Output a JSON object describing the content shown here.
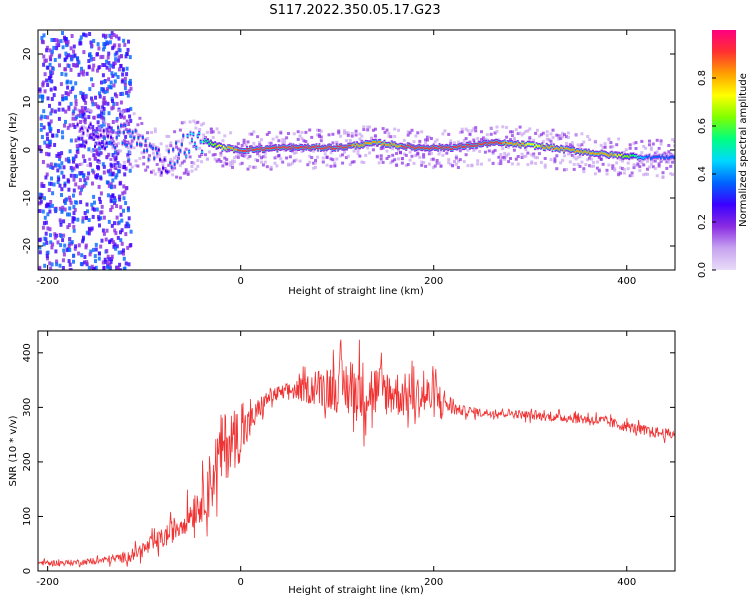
{
  "page": {
    "title": "S117.2022.350.05.17.G23"
  },
  "colors": {
    "background": "#ffffff",
    "axis": "#000000",
    "snr_line": "#f03232",
    "colormap": [
      "#e8dcf8",
      "#c7a3f0",
      "#8a2be2",
      "#3a00ff",
      "#0064ff",
      "#00d8ff",
      "#00ff80",
      "#80ff00",
      "#ffff00",
      "#ffa000",
      "#ff3030",
      "#ff0080"
    ]
  },
  "chart_data": [
    {
      "type": "heatmap",
      "title": "",
      "xlabel": "Height of straight line (km)",
      "ylabel": "Frequency (Hz)",
      "xlim": [
        -210,
        450
      ],
      "ylim": [
        -25,
        25
      ],
      "xticks": [
        -200,
        0,
        200,
        400
      ],
      "yticks": [
        20,
        10,
        0,
        -10,
        -20
      ],
      "colorbar": {
        "label": "Normalized spectral amplitude",
        "range": [
          0,
          1
        ],
        "ticks": [
          0.0,
          0.2,
          0.4,
          0.6,
          0.8
        ]
      },
      "ridge": {
        "description_points_x": [
          -160,
          -140,
          -120,
          -100,
          -80,
          -60,
          -40,
          -20,
          0,
          50,
          100,
          140,
          180,
          220,
          260,
          300,
          340,
          380,
          420,
          450
        ],
        "frequency_hz": [
          3,
          2.5,
          3,
          1,
          -3,
          1,
          2,
          0.5,
          0,
          0.5,
          0.5,
          1.5,
          0.5,
          0.5,
          1.5,
          1,
          0,
          -1,
          -1.5,
          -1.5
        ],
        "amplitude": [
          0.3,
          0.3,
          0.35,
          0.35,
          0.3,
          0.4,
          0.5,
          0.75,
          0.9,
          0.9,
          0.9,
          0.8,
          0.9,
          0.9,
          0.9,
          0.75,
          0.85,
          0.85,
          0.4,
          0.35
        ]
      }
    },
    {
      "type": "line",
      "title": "",
      "xlabel": "Height of straight line (km)",
      "ylabel": "SNR (10 * v/v)",
      "xlim": [
        -210,
        450
      ],
      "ylim": [
        0,
        440
      ],
      "xticks": [
        -200,
        0,
        200,
        400
      ],
      "yticks": [
        0,
        100,
        200,
        300,
        400
      ],
      "series": [
        {
          "x": [
            -210,
            -180,
            -150,
            -120,
            -100,
            -80,
            -60,
            -40,
            -30,
            -20,
            -10,
            0,
            10,
            20,
            30,
            50,
            75,
            100,
            125,
            150,
            175,
            200,
            225,
            250,
            275,
            300,
            325,
            350,
            375,
            400,
            425,
            450
          ],
          "y": [
            15,
            15,
            18,
            25,
            40,
            60,
            90,
            130,
            170,
            220,
            240,
            250,
            270,
            300,
            320,
            330,
            335,
            340,
            330,
            330,
            320,
            320,
            295,
            290,
            290,
            285,
            282,
            280,
            275,
            265,
            255,
            250
          ],
          "noise": [
            5,
            5,
            6,
            10,
            15,
            20,
            25,
            40,
            60,
            70,
            60,
            50,
            30,
            20,
            15,
            15,
            30,
            50,
            60,
            45,
            40,
            40,
            10,
            8,
            8,
            8,
            8,
            10,
            10,
            10,
            10,
            10
          ]
        }
      ]
    }
  ]
}
